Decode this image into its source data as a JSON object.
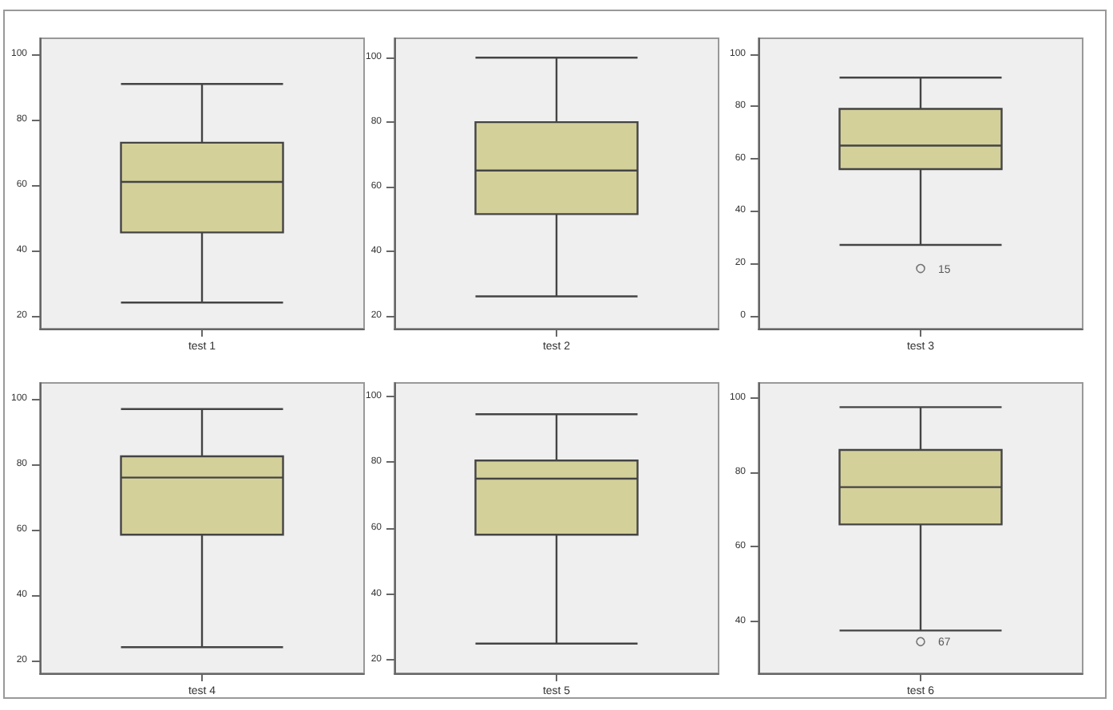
{
  "chart_data": [
    {
      "type": "box",
      "categories": [
        "test 1"
      ],
      "color": "#d4d09a",
      "boxes": [
        {
          "low": 24,
          "q1": 45.5,
          "median": 61,
          "q3": 73,
          "high": 91
        }
      ],
      "ylim": [
        16,
        105
      ],
      "yticks": [
        20,
        40,
        60,
        80,
        100
      ]
    },
    {
      "type": "box",
      "categories": [
        "test 2"
      ],
      "color": "#d4d09a",
      "boxes": [
        {
          "low": 26,
          "q1": 51.5,
          "median": 65,
          "q3": 80,
          "high": 100
        }
      ],
      "ylim": [
        16,
        106
      ],
      "yticks": [
        20,
        40,
        60,
        80,
        100
      ]
    },
    {
      "type": "box",
      "categories": [
        "test 3"
      ],
      "color": "#d4d09a",
      "boxes": [
        {
          "low": 27,
          "q1": 56,
          "median": 65,
          "q3": 79,
          "high": 91,
          "outliers": [
            18
          ]
        }
      ],
      "ylim": [
        -5,
        106
      ],
      "yticks": [
        0,
        20,
        40,
        60,
        80,
        100
      ],
      "annotations": [
        "15"
      ]
    },
    {
      "type": "box",
      "categories": [
        "test 4"
      ],
      "color": "#d4d09a",
      "boxes": [
        {
          "low": 24,
          "q1": 58.5,
          "median": 76,
          "q3": 82.5,
          "high": 97
        }
      ],
      "ylim": [
        16,
        105
      ],
      "yticks": [
        20,
        40,
        60,
        80,
        100
      ]
    },
    {
      "type": "box",
      "categories": [
        "test 5"
      ],
      "color": "#d4d09a",
      "boxes": [
        {
          "low": 25,
          "q1": 58,
          "median": 75,
          "q3": 80.5,
          "high": 94.5
        }
      ],
      "ylim": [
        16,
        104
      ],
      "yticks": [
        20,
        40,
        60,
        80,
        100
      ]
    },
    {
      "type": "box",
      "categories": [
        "test 6"
      ],
      "color": "#d4d09a",
      "boxes": [
        {
          "low": 37.5,
          "q1": 66,
          "median": 76,
          "q3": 86,
          "high": 97.5,
          "outliers": [
            34.5
          ]
        }
      ],
      "ylim": [
        26,
        104
      ],
      "yticks": [
        40,
        60,
        80,
        100
      ],
      "annotations": [
        "67"
      ]
    }
  ]
}
